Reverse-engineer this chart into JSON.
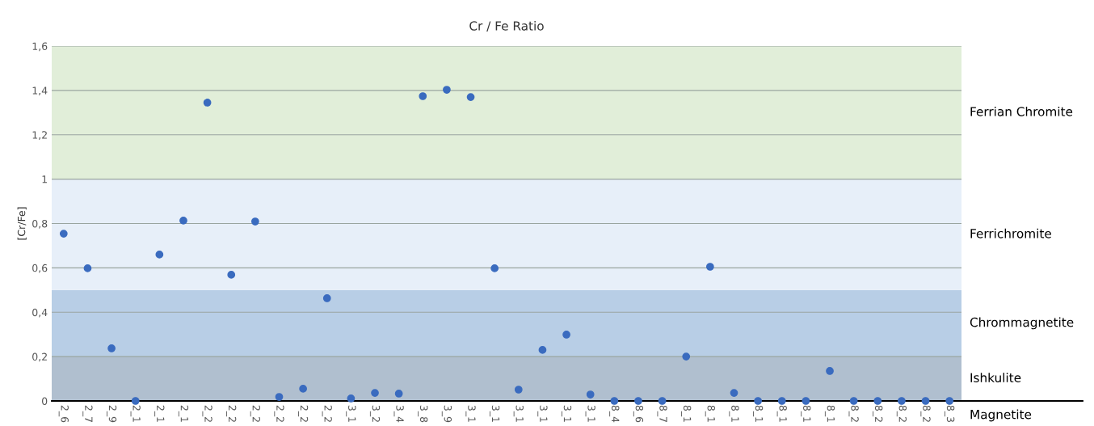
{
  "chart_data": {
    "type": "scatter",
    "title": "Cr / Fe Ratio",
    "ylabel": "[Cr/Fe]",
    "categories": [
      "2_6",
      "2_7",
      "2_9",
      "2_1",
      "2_1",
      "2_1",
      "2_2",
      "2_2",
      "2_2",
      "2_2",
      "2_2",
      "2_2",
      "3_1",
      "3_2",
      "3_4",
      "3_8",
      "3_9",
      "3_1",
      "3_1",
      "3_1",
      "3_1",
      "3_1",
      "3_1",
      "8_4",
      "8_6",
      "8_7",
      "8_1",
      "8_1",
      "8_1",
      "8_1",
      "8_1",
      "8_1",
      "8_1",
      "8_2",
      "8_2",
      "8_2",
      "8_2",
      "8_3"
    ],
    "series": [
      {
        "color": "#3a6bbf",
        "values": [
          0.754,
          0.598,
          0.237,
          0,
          0.66,
          0.813,
          1.345,
          0.569,
          0.809,
          0.018,
          0.055,
          0.463,
          0.011,
          0.036,
          0.033,
          1.374,
          1.403,
          1.37,
          0.598,
          0.051,
          0.23,
          0.299,
          0.029,
          0,
          0,
          0,
          0.2,
          0.605,
          0.036,
          0,
          0,
          0,
          0.135,
          0,
          0,
          0,
          0,
          0
        ]
      }
    ],
    "ylim": [
      0,
      1.6
    ],
    "yticks": [
      0,
      {
        "value": 0.2,
        "label": "0,2"
      },
      {
        "value": 0.4,
        "label": "0,4"
      },
      {
        "value": 0.6,
        "label": "0,6"
      },
      {
        "value": 0.8,
        "label": "0,8"
      },
      1,
      {
        "value": 1.2,
        "label": "1,2"
      },
      {
        "value": 1.4,
        "label": "1,4"
      },
      {
        "value": 1.6,
        "label": "1,6"
      }
    ],
    "bands": [
      {
        "axis": "y",
        "from": 0,
        "to": 0.2,
        "label": "Ishkulite",
        "color": "#b0bfcf"
      },
      {
        "axis": "y",
        "from": 0.2,
        "to": 0.5,
        "label": "Chrommagnetite",
        "color": "#b8cee6"
      },
      {
        "axis": "y",
        "from": 0.5,
        "to": 1,
        "label": "Ferrichromite",
        "color": "#e7eff9"
      },
      {
        "axis": "y",
        "from": 1,
        "to": 1.6,
        "label": "Ferrian Chromite",
        "color": "#e1eed9"
      }
    ],
    "annotations": [
      "Magnetite"
    ],
    "grid": "y",
    "marker": "circle",
    "legend": false
  }
}
